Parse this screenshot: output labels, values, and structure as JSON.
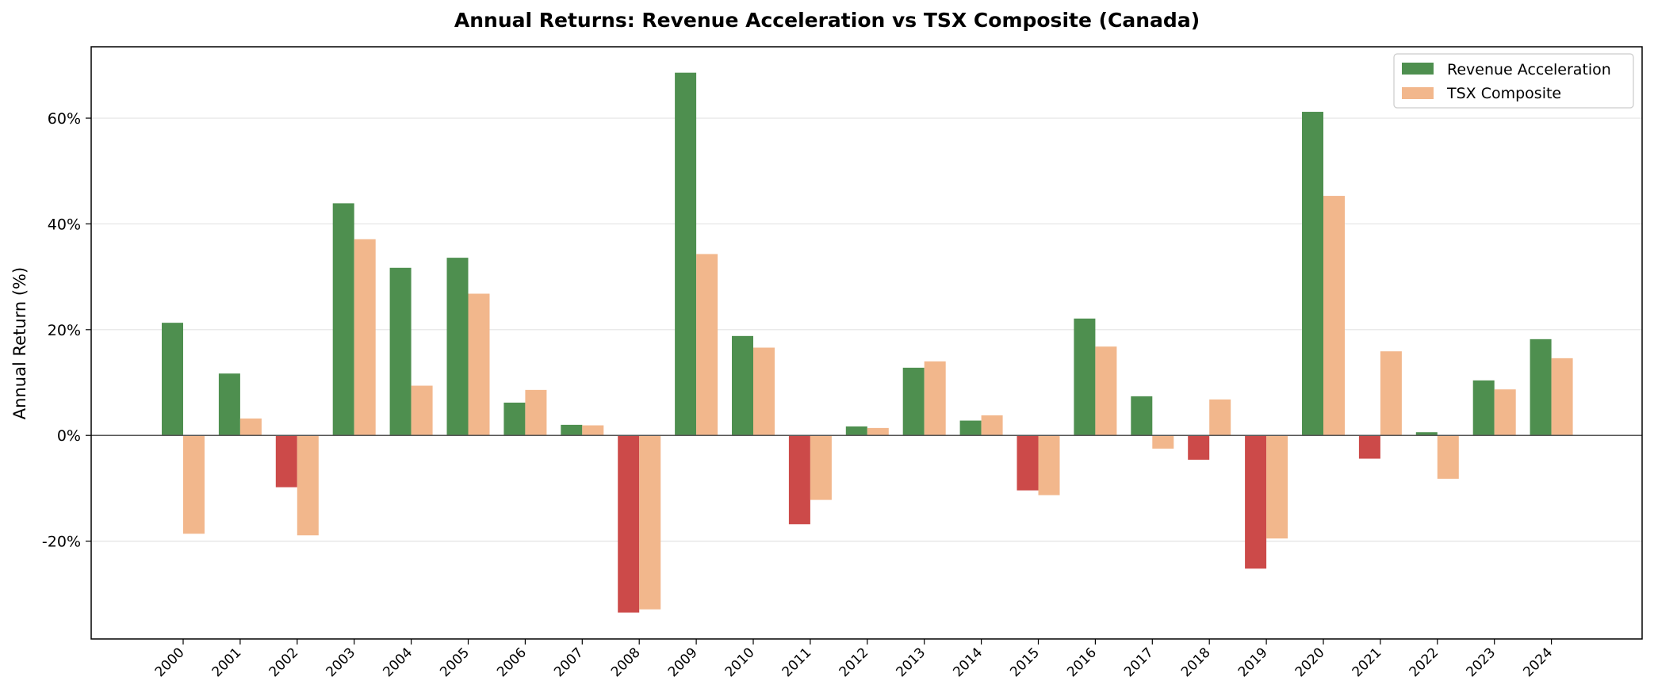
{
  "chart_data": {
    "type": "bar",
    "title": "Annual Returns: Revenue Acceleration vs TSX Composite (Canada)",
    "xlabel": "",
    "ylabel": "Annual Return (%)",
    "ylim": [
      -38.5,
      73.5
    ],
    "yticks": [
      -20,
      0,
      20,
      40,
      60
    ],
    "ytick_labels": [
      "-20%",
      "0%",
      "20%",
      "40%",
      "60%"
    ],
    "grid": "horizontal",
    "legend_position": "top-right",
    "categories": [
      "2000",
      "2001",
      "2002",
      "2003",
      "2004",
      "2005",
      "2006",
      "2007",
      "2008",
      "2009",
      "2010",
      "2011",
      "2012",
      "2013",
      "2014",
      "2015",
      "2016",
      "2017",
      "2018",
      "2019",
      "2020",
      "2021",
      "2022",
      "2023",
      "2024"
    ],
    "series": [
      {
        "name": "Revenue Acceleration",
        "color": "#4e8f4f",
        "negative_color": "#cc4a49",
        "values": [
          21.3,
          11.7,
          -9.8,
          43.9,
          31.7,
          33.6,
          6.2,
          2.0,
          -33.5,
          68.6,
          18.8,
          -16.8,
          1.7,
          12.8,
          2.8,
          -10.4,
          22.1,
          7.4,
          -4.6,
          -25.2,
          61.2,
          -4.4,
          0.6,
          10.4,
          18.2
        ]
      },
      {
        "name": "TSX Composite",
        "color": "#f2b78c",
        "values": [
          -18.6,
          3.2,
          -18.9,
          37.1,
          9.4,
          26.8,
          8.6,
          1.9,
          -32.9,
          34.3,
          16.6,
          -12.2,
          1.4,
          14.0,
          3.8,
          -11.3,
          16.8,
          -2.5,
          6.8,
          -19.5,
          45.3,
          15.9,
          -8.2,
          8.7,
          14.6
        ]
      }
    ]
  }
}
